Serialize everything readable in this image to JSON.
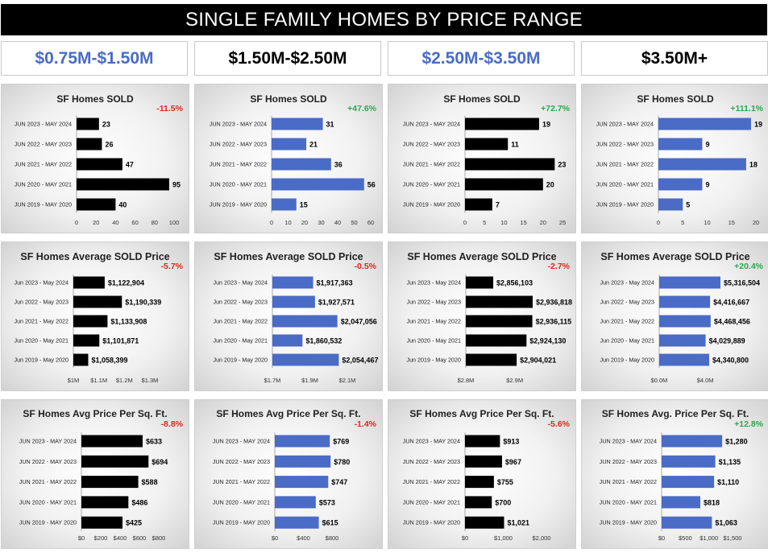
{
  "title": "SINGLE FAMILY HOMES BY PRICE RANGE",
  "colors": {
    "black_bar": "#000000",
    "blue_bar": "#4a6bc6",
    "blue_text": "#4a6bc6",
    "negative": "#e0261b",
    "positive": "#2aa84a"
  },
  "ranges": [
    {
      "label": "$0.75M-$1.50M",
      "color": "#4a6bc6"
    },
    {
      "label": "$1.50M-$2.50M",
      "color": "#000000"
    },
    {
      "label": "$2.50M-$3.50M",
      "color": "#4a6bc6"
    },
    {
      "label": "$3.50M+",
      "color": "#000000"
    }
  ],
  "chart_data": [
    {
      "type": "bar",
      "title": "SF Homes SOLD",
      "change": "-11.5%",
      "bar_color": "#000000",
      "categories": [
        "JUN 2023 - MAY 2024",
        "JUN 2022 - MAY 2023",
        "JUN 2021 - MAY 2022",
        "JUN 2020 - MAY 2021",
        "JUN 2019 - MAY 2020"
      ],
      "values": [
        23,
        26,
        47,
        95,
        40
      ],
      "data_labels": [
        "23",
        "26",
        "47",
        "95",
        "40"
      ],
      "xlim": [
        0,
        100
      ],
      "ticks": [
        0,
        20,
        40,
        60,
        80,
        100
      ],
      "tick_labels": [
        "0",
        "20",
        "40",
        "60",
        "80",
        "100"
      ]
    },
    {
      "type": "bar",
      "title": "SF Homes SOLD",
      "change": "+47.6%",
      "bar_color": "#4a6bc6",
      "categories": [
        "JUN 2023 - MAY 2024",
        "JUN 2022 - MAY 2023",
        "JUN 2021 - MAY 2022",
        "JUN 2020 - MAY 2021",
        "JUN 2019 - MAY 2020"
      ],
      "values": [
        31,
        21,
        36,
        56,
        15
      ],
      "data_labels": [
        "31",
        "21",
        "36",
        "56",
        "15"
      ],
      "xlim": [
        0,
        60
      ],
      "ticks": [
        0,
        10,
        20,
        30,
        40,
        50,
        60
      ],
      "tick_labels": [
        "0",
        "10",
        "20",
        "30",
        "40",
        "50",
        "60"
      ]
    },
    {
      "type": "bar",
      "title": "SF Homes SOLD",
      "change": "+72.7%",
      "bar_color": "#000000",
      "categories": [
        "JUN 2023 - MAY 2024",
        "JUN 2022 - MAY 2023",
        "JUN 2021 - MAY 2022",
        "JUN 2020 - MAY 2021",
        "JUN 2019 - MAY 2020"
      ],
      "values": [
        19,
        11,
        23,
        20,
        7
      ],
      "data_labels": [
        "19",
        "11",
        "23",
        "20",
        "7"
      ],
      "xlim": [
        0,
        25
      ],
      "ticks": [
        0,
        5,
        10,
        15,
        20,
        25
      ],
      "tick_labels": [
        "0",
        "5",
        "10",
        "15",
        "20",
        "25"
      ]
    },
    {
      "type": "bar",
      "title": "SF Homes SOLD",
      "change": "+111.1%",
      "bar_color": "#4a6bc6",
      "categories": [
        "JUN 2023 - MAY 2024",
        "JUN 2022 - MAY 2023",
        "JUN 2021 - MAY 2022",
        "JUN 2020 - MAY 2021",
        "JUN 2019 - MAY 2020"
      ],
      "values": [
        19,
        9,
        18,
        9,
        5
      ],
      "data_labels": [
        "19",
        "9",
        "18",
        "9",
        "5"
      ],
      "xlim": [
        0,
        20
      ],
      "ticks": [
        0,
        5,
        10,
        15,
        20
      ],
      "tick_labels": [
        "0",
        "5",
        "10",
        "15",
        "20"
      ]
    },
    {
      "type": "bar",
      "title": "SF Homes Average SOLD Price",
      "change": "-5.7%",
      "bar_color": "#000000",
      "categories": [
        "Jun 2023 - May 2024",
        "Jun 2022 - May 2023",
        "Jun 2021 - May 2022",
        "Jun 2020 - May 2021",
        "Jun 2019 - May 2020"
      ],
      "values": [
        1122904,
        1190339,
        1133908,
        1101871,
        1058399
      ],
      "data_labels": [
        "$1,122,904",
        "$1,190,339",
        "$1,133,908",
        "$1,101,871",
        "$1,058,399"
      ],
      "xlim": [
        1000000,
        1300000
      ],
      "ticks": [
        1000000,
        1100000,
        1200000,
        1300000
      ],
      "tick_labels": [
        "$1M",
        "$1.1M",
        "$1.2M",
        "$1.3M"
      ]
    },
    {
      "type": "bar",
      "title": "SF Homes Average SOLD Price",
      "change": "-0.5%",
      "bar_color": "#4a6bc6",
      "categories": [
        "Jun 2023 - May 2024",
        "Jun 2022 - May 2023",
        "Jun 2021 - May 2022",
        "Jun 2020 - May 2021",
        "Jun 2019 - May 2020"
      ],
      "values": [
        1917363,
        1927571,
        2047056,
        1860532,
        2054467
      ],
      "data_labels": [
        "$1,917,363",
        "$1,927,571",
        "$2,047,056",
        "$1,860,532",
        "$2,054,467"
      ],
      "xlim": [
        1700000,
        2100000
      ],
      "ticks": [
        1700000,
        1900000,
        2100000
      ],
      "tick_labels": [
        "$1.7M",
        "$1.9M",
        "$2.1M"
      ]
    },
    {
      "type": "bar",
      "title": "SF Homes Average SOLD Price",
      "change": "-2.7%",
      "bar_color": "#000000",
      "categories": [
        "Jun 2023 - May 2024",
        "Jun 2022 - May 2023",
        "Jun 2021 - May 2022",
        "Jun 2020 - May 2021",
        "Jun 2019 - May 2020"
      ],
      "values": [
        2856103,
        2936818,
        2936115,
        2924130,
        2904021
      ],
      "data_labels": [
        "$2,856,103",
        "$2,936,818",
        "$2,936,115",
        "$2,924,130",
        "$2,904,021"
      ],
      "xlim": [
        2800000,
        2950000
      ],
      "ticks": [
        2800000,
        2900000
      ],
      "tick_labels": [
        "$2.8M",
        "$2.9M"
      ]
    },
    {
      "type": "bar",
      "title": "SF Homes Average SOLD Price",
      "change": "+20.4%",
      "bar_color": "#4a6bc6",
      "categories": [
        "Jun 2023 - May 2024",
        "Jun 2022 - May 2023",
        "Jun 2021 - May 2022",
        "Jun 2020 - May 2021",
        "Jun 2019 - May 2020"
      ],
      "values": [
        5316504,
        4416667,
        4468456,
        4029889,
        4340800
      ],
      "data_labels": [
        "$5,316,504",
        "$4,416,667",
        "$4,468,456",
        "$4,029,889",
        "$4,340,800"
      ],
      "xlim": [
        0,
        5600000
      ],
      "ticks": [
        0,
        4000000
      ],
      "tick_labels": [
        "$0.0M",
        "$4.0M"
      ]
    },
    {
      "type": "bar",
      "title": "SF Homes Avg Price Per Sq. Ft.",
      "change": "-8.8%",
      "bar_color": "#000000",
      "categories": [
        "JUN 2023 - MAY 2024",
        "JUN 2022 - MAY 2023",
        "JUN 2021 - MAY 2022",
        "JUN 2020 - MAY 2021",
        "JUN 2019 - MAY 2020"
      ],
      "values": [
        633,
        694,
        588,
        486,
        425
      ],
      "data_labels": [
        "$633",
        "$694",
        "$588",
        "$486",
        "$425"
      ],
      "xlim": [
        0,
        800
      ],
      "ticks": [
        0,
        200,
        400,
        600,
        800
      ],
      "tick_labels": [
        "$0",
        "$200",
        "$400",
        "$600",
        "$800"
      ]
    },
    {
      "type": "bar",
      "title": "SF Homes Avg Price Per Sq. Ft.",
      "change": "-1.4%",
      "bar_color": "#4a6bc6",
      "categories": [
        "JUN 2023 - MAY 2024",
        "JUN 2022 - MAY 2023",
        "JUN 2021 - MAY 2022",
        "JUN 2020 - MAY 2021",
        "JUN 2019 - MAY 2020"
      ],
      "values": [
        769,
        780,
        747,
        573,
        615
      ],
      "data_labels": [
        "$769",
        "$780",
        "$747",
        "$573",
        "$615"
      ],
      "xlim": [
        0,
        800
      ],
      "ticks": [
        0,
        400,
        800
      ],
      "tick_labels": [
        "$0",
        "$400",
        "$800"
      ]
    },
    {
      "type": "bar",
      "title": "SF Homes Avg Price Per Sq. Ft.",
      "change": "-5.6%",
      "bar_color": "#000000",
      "categories": [
        "JUN 2023 - MAY 2024",
        "JUN 2022 - MAY 2023",
        "JUN 2021 - MAY 2022",
        "JUN 2020 - MAY 2021",
        "JUN 2019 - MAY 2020"
      ],
      "values": [
        913,
        967,
        755,
        700,
        1021
      ],
      "data_labels": [
        "$913",
        "$967",
        "$755",
        "$700",
        "$1,021"
      ],
      "xlim": [
        0,
        2000
      ],
      "ticks": [
        0,
        1000,
        2000
      ],
      "tick_labels": [
        "$0",
        "$1,000",
        "$2,000"
      ]
    },
    {
      "type": "bar",
      "title": "SF Homes Avg. Price Per Sq. Ft.",
      "change": "+12.8%",
      "bar_color": "#4a6bc6",
      "categories": [
        "JUN 2023 - MAY 2024",
        "JUN 2022 - MAY 2023",
        "JUN 2021 - MAY 2022",
        "JUN 2020 - MAY 2021",
        "JUN 2019 - MAY 2020"
      ],
      "values": [
        1280,
        1135,
        1110,
        818,
        1063
      ],
      "data_labels": [
        "$1,280",
        "$1,135",
        "$1,110",
        "$818",
        "$1,063"
      ],
      "xlim": [
        0,
        1500
      ],
      "ticks": [
        0,
        500,
        1000,
        1500
      ],
      "tick_labels": [
        "$0",
        "$500",
        "$1,000",
        "$1,500"
      ]
    }
  ]
}
